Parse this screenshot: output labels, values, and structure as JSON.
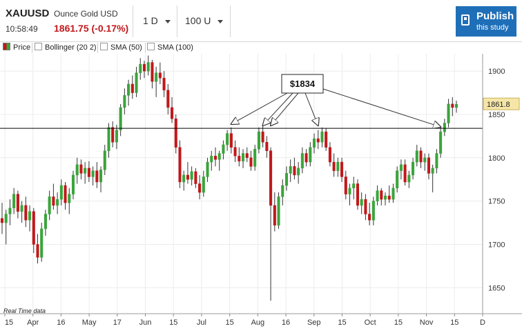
{
  "header": {
    "symbol": "XAUUSD",
    "description": "Ounce Gold USD",
    "time": "10:58:49",
    "price": "1861.75 (-0.17%)",
    "interval": "1 D",
    "units": "100 U",
    "publish_label": "Publish",
    "publish_sub": "this study"
  },
  "legend": {
    "price": "Price",
    "bollinger": "Bollinger (20 2)",
    "sma50": "SMA (50)",
    "sma100": "SMA (100)"
  },
  "footer": {
    "realtime": "Real Time data"
  },
  "colors": {
    "up": "#3aa43a",
    "down": "#c0181b",
    "accent": "#1f6fb8",
    "line": "#000000"
  },
  "chart_data": {
    "type": "candlestick",
    "ylim": [
      1620,
      1920
    ],
    "y_ticks": [
      1650,
      1700,
      1750,
      1800,
      1850,
      1900
    ],
    "x_ticks": [
      "15",
      "Apr",
      "16",
      "May",
      "17",
      "Jun",
      "15",
      "Jul",
      "15",
      "Aug",
      "16",
      "Sep",
      "15",
      "Oct",
      "15",
      "Nov",
      "15",
      "D"
    ],
    "last_price_label": "1861.8",
    "horizontal_line": 1834,
    "annotation": "$1834",
    "series": [
      {
        "o": 1730,
        "h": 1748,
        "l": 1712,
        "c": 1725
      },
      {
        "o": 1725,
        "h": 1740,
        "l": 1700,
        "c": 1735
      },
      {
        "o": 1735,
        "h": 1752,
        "l": 1722,
        "c": 1742
      },
      {
        "o": 1742,
        "h": 1765,
        "l": 1735,
        "c": 1758
      },
      {
        "o": 1758,
        "h": 1762,
        "l": 1730,
        "c": 1738
      },
      {
        "o": 1738,
        "h": 1750,
        "l": 1725,
        "c": 1745
      },
      {
        "o": 1745,
        "h": 1755,
        "l": 1720,
        "c": 1728
      },
      {
        "o": 1728,
        "h": 1745,
        "l": 1715,
        "c": 1738
      },
      {
        "o": 1738,
        "h": 1742,
        "l": 1690,
        "c": 1700
      },
      {
        "o": 1700,
        "h": 1712,
        "l": 1678,
        "c": 1685
      },
      {
        "o": 1685,
        "h": 1725,
        "l": 1680,
        "c": 1718
      },
      {
        "o": 1718,
        "h": 1740,
        "l": 1710,
        "c": 1735
      },
      {
        "o": 1735,
        "h": 1762,
        "l": 1728,
        "c": 1755
      },
      {
        "o": 1755,
        "h": 1770,
        "l": 1740,
        "c": 1745
      },
      {
        "o": 1745,
        "h": 1760,
        "l": 1735,
        "c": 1752
      },
      {
        "o": 1752,
        "h": 1775,
        "l": 1745,
        "c": 1768
      },
      {
        "o": 1768,
        "h": 1772,
        "l": 1740,
        "c": 1748
      },
      {
        "o": 1748,
        "h": 1765,
        "l": 1735,
        "c": 1758
      },
      {
        "o": 1758,
        "h": 1785,
        "l": 1752,
        "c": 1780
      },
      {
        "o": 1780,
        "h": 1800,
        "l": 1770,
        "c": 1792
      },
      {
        "o": 1792,
        "h": 1798,
        "l": 1775,
        "c": 1782
      },
      {
        "o": 1782,
        "h": 1795,
        "l": 1770,
        "c": 1788
      },
      {
        "o": 1788,
        "h": 1796,
        "l": 1772,
        "c": 1778
      },
      {
        "o": 1778,
        "h": 1790,
        "l": 1768,
        "c": 1785
      },
      {
        "o": 1785,
        "h": 1795,
        "l": 1765,
        "c": 1772
      },
      {
        "o": 1772,
        "h": 1790,
        "l": 1760,
        "c": 1786
      },
      {
        "o": 1786,
        "h": 1815,
        "l": 1780,
        "c": 1808
      },
      {
        "o": 1808,
        "h": 1840,
        "l": 1800,
        "c": 1835
      },
      {
        "o": 1835,
        "h": 1842,
        "l": 1812,
        "c": 1818
      },
      {
        "o": 1818,
        "h": 1838,
        "l": 1810,
        "c": 1832
      },
      {
        "o": 1832,
        "h": 1862,
        "l": 1825,
        "c": 1858
      },
      {
        "o": 1858,
        "h": 1880,
        "l": 1850,
        "c": 1872
      },
      {
        "o": 1872,
        "h": 1890,
        "l": 1860,
        "c": 1885
      },
      {
        "o": 1885,
        "h": 1895,
        "l": 1868,
        "c": 1875
      },
      {
        "o": 1875,
        "h": 1905,
        "l": 1870,
        "c": 1898
      },
      {
        "o": 1898,
        "h": 1915,
        "l": 1890,
        "c": 1908
      },
      {
        "o": 1908,
        "h": 1912,
        "l": 1892,
        "c": 1900
      },
      {
        "o": 1900,
        "h": 1918,
        "l": 1895,
        "c": 1910
      },
      {
        "o": 1910,
        "h": 1913,
        "l": 1880,
        "c": 1888
      },
      {
        "o": 1888,
        "h": 1905,
        "l": 1870,
        "c": 1898
      },
      {
        "o": 1898,
        "h": 1910,
        "l": 1885,
        "c": 1892
      },
      {
        "o": 1892,
        "h": 1900,
        "l": 1870,
        "c": 1878
      },
      {
        "o": 1878,
        "h": 1885,
        "l": 1850,
        "c": 1858
      },
      {
        "o": 1858,
        "h": 1870,
        "l": 1840,
        "c": 1845
      },
      {
        "o": 1845,
        "h": 1850,
        "l": 1805,
        "c": 1812
      },
      {
        "o": 1812,
        "h": 1820,
        "l": 1765,
        "c": 1772
      },
      {
        "o": 1772,
        "h": 1785,
        "l": 1762,
        "c": 1780
      },
      {
        "o": 1780,
        "h": 1795,
        "l": 1770,
        "c": 1775
      },
      {
        "o": 1775,
        "h": 1790,
        "l": 1768,
        "c": 1784
      },
      {
        "o": 1784,
        "h": 1788,
        "l": 1765,
        "c": 1770
      },
      {
        "o": 1770,
        "h": 1780,
        "l": 1752,
        "c": 1760
      },
      {
        "o": 1760,
        "h": 1785,
        "l": 1755,
        "c": 1778
      },
      {
        "o": 1778,
        "h": 1800,
        "l": 1772,
        "c": 1795
      },
      {
        "o": 1795,
        "h": 1808,
        "l": 1785,
        "c": 1802
      },
      {
        "o": 1802,
        "h": 1812,
        "l": 1790,
        "c": 1798
      },
      {
        "o": 1798,
        "h": 1808,
        "l": 1785,
        "c": 1805
      },
      {
        "o": 1805,
        "h": 1820,
        "l": 1798,
        "c": 1815
      },
      {
        "o": 1815,
        "h": 1832,
        "l": 1808,
        "c": 1828
      },
      {
        "o": 1828,
        "h": 1835,
        "l": 1805,
        "c": 1812
      },
      {
        "o": 1812,
        "h": 1820,
        "l": 1795,
        "c": 1802
      },
      {
        "o": 1802,
        "h": 1812,
        "l": 1790,
        "c": 1796
      },
      {
        "o": 1796,
        "h": 1810,
        "l": 1788,
        "c": 1805
      },
      {
        "o": 1805,
        "h": 1812,
        "l": 1795,
        "c": 1800
      },
      {
        "o": 1800,
        "h": 1808,
        "l": 1785,
        "c": 1790
      },
      {
        "o": 1790,
        "h": 1815,
        "l": 1785,
        "c": 1810
      },
      {
        "o": 1810,
        "h": 1835,
        "l": 1805,
        "c": 1830
      },
      {
        "o": 1830,
        "h": 1838,
        "l": 1812,
        "c": 1818
      },
      {
        "o": 1818,
        "h": 1825,
        "l": 1800,
        "c": 1808
      },
      {
        "o": 1808,
        "h": 1812,
        "l": 1635,
        "c": 1745
      },
      {
        "o": 1745,
        "h": 1760,
        "l": 1715,
        "c": 1722
      },
      {
        "o": 1722,
        "h": 1760,
        "l": 1718,
        "c": 1755
      },
      {
        "o": 1755,
        "h": 1775,
        "l": 1745,
        "c": 1768
      },
      {
        "o": 1768,
        "h": 1790,
        "l": 1762,
        "c": 1782
      },
      {
        "o": 1782,
        "h": 1798,
        "l": 1772,
        "c": 1790
      },
      {
        "o": 1790,
        "h": 1800,
        "l": 1775,
        "c": 1780
      },
      {
        "o": 1780,
        "h": 1795,
        "l": 1770,
        "c": 1788
      },
      {
        "o": 1788,
        "h": 1812,
        "l": 1782,
        "c": 1805
      },
      {
        "o": 1805,
        "h": 1810,
        "l": 1790,
        "c": 1795
      },
      {
        "o": 1795,
        "h": 1818,
        "l": 1790,
        "c": 1812
      },
      {
        "o": 1812,
        "h": 1828,
        "l": 1805,
        "c": 1822
      },
      {
        "o": 1822,
        "h": 1832,
        "l": 1810,
        "c": 1818
      },
      {
        "o": 1818,
        "h": 1835,
        "l": 1812,
        "c": 1830
      },
      {
        "o": 1830,
        "h": 1834,
        "l": 1808,
        "c": 1812
      },
      {
        "o": 1812,
        "h": 1818,
        "l": 1790,
        "c": 1795
      },
      {
        "o": 1795,
        "h": 1805,
        "l": 1778,
        "c": 1785
      },
      {
        "o": 1785,
        "h": 1800,
        "l": 1778,
        "c": 1795
      },
      {
        "o": 1795,
        "h": 1800,
        "l": 1772,
        "c": 1778
      },
      {
        "o": 1778,
        "h": 1785,
        "l": 1752,
        "c": 1758
      },
      {
        "o": 1758,
        "h": 1770,
        "l": 1745,
        "c": 1765
      },
      {
        "o": 1765,
        "h": 1778,
        "l": 1752,
        "c": 1770
      },
      {
        "o": 1770,
        "h": 1775,
        "l": 1740,
        "c": 1745
      },
      {
        "o": 1745,
        "h": 1760,
        "l": 1735,
        "c": 1752
      },
      {
        "o": 1752,
        "h": 1758,
        "l": 1728,
        "c": 1735
      },
      {
        "o": 1735,
        "h": 1748,
        "l": 1722,
        "c": 1728
      },
      {
        "o": 1728,
        "h": 1755,
        "l": 1722,
        "c": 1750
      },
      {
        "o": 1750,
        "h": 1768,
        "l": 1745,
        "c": 1762
      },
      {
        "o": 1762,
        "h": 1765,
        "l": 1745,
        "c": 1752
      },
      {
        "o": 1752,
        "h": 1760,
        "l": 1745,
        "c": 1756
      },
      {
        "o": 1756,
        "h": 1768,
        "l": 1748,
        "c": 1752
      },
      {
        "o": 1752,
        "h": 1770,
        "l": 1748,
        "c": 1765
      },
      {
        "o": 1765,
        "h": 1790,
        "l": 1760,
        "c": 1785
      },
      {
        "o": 1785,
        "h": 1798,
        "l": 1775,
        "c": 1792
      },
      {
        "o": 1792,
        "h": 1798,
        "l": 1768,
        "c": 1772
      },
      {
        "o": 1772,
        "h": 1785,
        "l": 1765,
        "c": 1780
      },
      {
        "o": 1780,
        "h": 1800,
        "l": 1775,
        "c": 1795
      },
      {
        "o": 1795,
        "h": 1815,
        "l": 1790,
        "c": 1808
      },
      {
        "o": 1808,
        "h": 1812,
        "l": 1788,
        "c": 1795
      },
      {
        "o": 1795,
        "h": 1805,
        "l": 1785,
        "c": 1800
      },
      {
        "o": 1800,
        "h": 1805,
        "l": 1775,
        "c": 1782
      },
      {
        "o": 1782,
        "h": 1792,
        "l": 1760,
        "c": 1788
      },
      {
        "o": 1788,
        "h": 1810,
        "l": 1782,
        "c": 1805
      },
      {
        "o": 1805,
        "h": 1835,
        "l": 1800,
        "c": 1830
      },
      {
        "o": 1830,
        "h": 1845,
        "l": 1825,
        "c": 1840
      },
      {
        "o": 1840,
        "h": 1868,
        "l": 1835,
        "c": 1862
      },
      {
        "o": 1862,
        "h": 1870,
        "l": 1848,
        "c": 1858
      },
      {
        "o": 1858,
        "h": 1866,
        "l": 1852,
        "c": 1861.75
      }
    ]
  }
}
